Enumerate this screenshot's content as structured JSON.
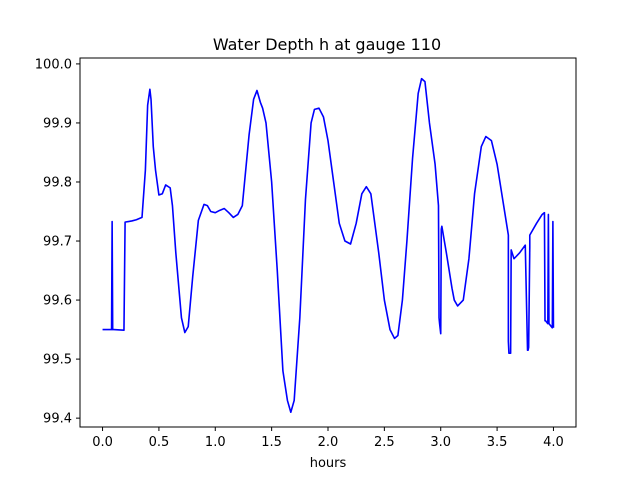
{
  "chart_data": {
    "type": "line",
    "title": "Water Depth h at gauge 110",
    "xlabel": "hours",
    "ylabel": "",
    "xlim": [
      -0.2,
      4.2
    ],
    "ylim": [
      99.385,
      100.01
    ],
    "xticks": [
      0.0,
      0.5,
      1.0,
      1.5,
      2.0,
      2.5,
      3.0,
      3.5,
      4.0
    ],
    "xtick_labels": [
      "0.0",
      "0.5",
      "1.0",
      "1.5",
      "2.0",
      "2.5",
      "3.0",
      "3.5",
      "4.0"
    ],
    "yticks": [
      99.4,
      99.5,
      99.6,
      99.7,
      99.8,
      99.9,
      100.0
    ],
    "ytick_labels": [
      "99.4",
      "99.5",
      "99.6",
      "99.7",
      "99.8",
      "99.9",
      "100.0"
    ],
    "grid": false,
    "series": [
      {
        "color": "#0000ff",
        "x": [
          0.0,
          0.07,
          0.08,
          0.085,
          0.09,
          0.1,
          0.19,
          0.2,
          0.26,
          0.3,
          0.35,
          0.38,
          0.4,
          0.42,
          0.43,
          0.45,
          0.47,
          0.5,
          0.53,
          0.56,
          0.6,
          0.62,
          0.65,
          0.7,
          0.73,
          0.76,
          0.8,
          0.85,
          0.9,
          0.93,
          0.96,
          1.0,
          1.04,
          1.08,
          1.12,
          1.16,
          1.2,
          1.24,
          1.3,
          1.34,
          1.37,
          1.4,
          1.42,
          1.45,
          1.5,
          1.55,
          1.6,
          1.64,
          1.67,
          1.7,
          1.75,
          1.8,
          1.85,
          1.88,
          1.92,
          1.96,
          2.0,
          2.05,
          2.1,
          2.15,
          2.2,
          2.25,
          2.3,
          2.34,
          2.38,
          2.45,
          2.5,
          2.55,
          2.59,
          2.62,
          2.66,
          2.7,
          2.75,
          2.8,
          2.83,
          2.86,
          2.9,
          2.95,
          2.98,
          2.985,
          2.99,
          3.0,
          3.005,
          3.01,
          3.05,
          3.1,
          3.12,
          3.15,
          3.2,
          3.25,
          3.3,
          3.36,
          3.4,
          3.45,
          3.5,
          3.55,
          3.6,
          3.6,
          3.605,
          3.62,
          3.625,
          3.65,
          3.7,
          3.75,
          3.77,
          3.775,
          3.78,
          3.79,
          3.79,
          3.85,
          3.9,
          3.92,
          3.925,
          3.93,
          3.95,
          3.955,
          3.96,
          3.99,
          3.995,
          4.0
        ],
        "y": [
          99.55,
          99.55,
          99.55,
          99.733,
          99.55,
          99.55,
          99.549,
          99.732,
          99.734,
          99.736,
          99.74,
          99.82,
          99.93,
          99.957,
          99.94,
          99.86,
          99.82,
          99.778,
          99.78,
          99.795,
          99.79,
          99.76,
          99.68,
          99.57,
          99.545,
          99.555,
          99.64,
          99.735,
          99.762,
          99.76,
          99.75,
          99.748,
          99.752,
          99.755,
          99.748,
          99.74,
          99.745,
          99.76,
          99.88,
          99.94,
          99.955,
          99.935,
          99.925,
          99.9,
          99.8,
          99.65,
          99.48,
          99.43,
          99.41,
          99.43,
          99.57,
          99.77,
          99.9,
          99.923,
          99.925,
          99.91,
          99.87,
          99.8,
          99.73,
          99.7,
          99.695,
          99.73,
          99.78,
          99.792,
          99.78,
          99.68,
          99.6,
          99.55,
          99.535,
          99.54,
          99.6,
          99.7,
          99.84,
          99.95,
          99.975,
          99.97,
          99.9,
          99.83,
          99.76,
          99.57,
          99.56,
          99.543,
          99.72,
          99.725,
          99.68,
          99.62,
          99.6,
          99.59,
          99.6,
          99.67,
          99.78,
          99.86,
          99.877,
          99.87,
          99.83,
          99.77,
          99.71,
          99.53,
          99.51,
          99.51,
          99.685,
          99.67,
          99.68,
          99.693,
          99.515,
          99.515,
          99.52,
          99.69,
          99.71,
          99.73,
          99.745,
          99.748,
          99.565,
          99.565,
          99.56,
          99.745,
          99.56,
          99.553,
          99.733,
          99.553
        ]
      }
    ]
  }
}
